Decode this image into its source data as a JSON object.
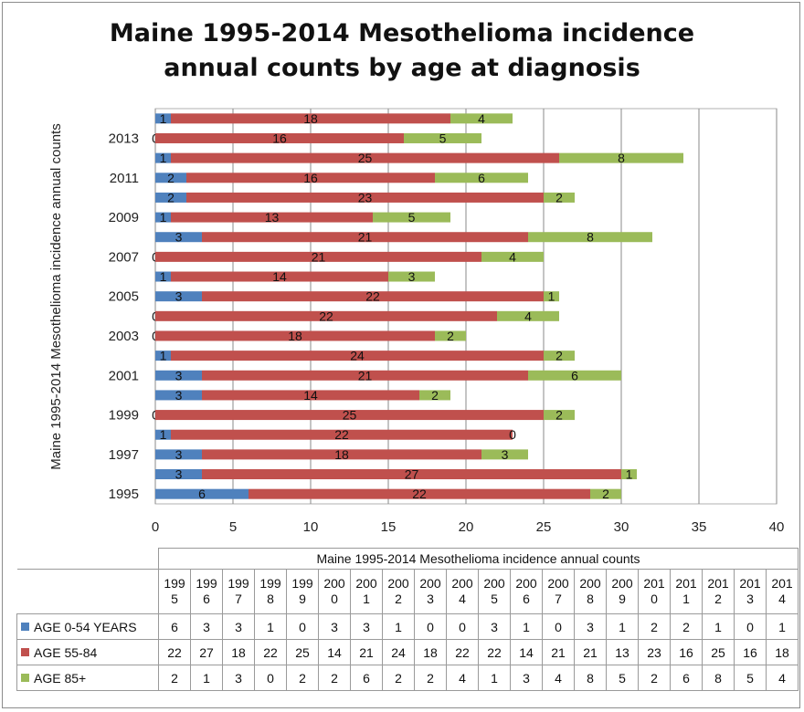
{
  "chart_data": {
    "type": "bar",
    "orientation": "horizontal",
    "stacked": true,
    "title_lines": [
      "Maine  1995-2014 Mesothelioma incidence",
      "annual counts by age at diagnosis"
    ],
    "ylabel": "Maine  1995-2014 Mesothelioma incidence annual counts",
    "xlabel": "",
    "xlim": [
      0,
      40
    ],
    "x_ticks": [
      "0",
      "5",
      "10",
      "15",
      "20",
      "25",
      "30",
      "35",
      "40"
    ],
    "y_tick_labels": [
      "1995",
      "1997",
      "1999",
      "2001",
      "2003",
      "2005",
      "2007",
      "2009",
      "2011",
      "2013"
    ],
    "grid": "vertical gridlines",
    "categories": [
      "1995",
      "1996",
      "1997",
      "1998",
      "1999",
      "2000",
      "2001",
      "2002",
      "2003",
      "2004",
      "2005",
      "2006",
      "2007",
      "2008",
      "2009",
      "2010",
      "2011",
      "2012",
      "2013",
      "2014"
    ],
    "series": [
      {
        "name": "AGE 0-54 YEARS",
        "color": "#4f81bd",
        "values": [
          6,
          3,
          3,
          1,
          0,
          3,
          3,
          1,
          0,
          0,
          3,
          1,
          0,
          3,
          1,
          2,
          2,
          1,
          0,
          1
        ]
      },
      {
        "name": "AGE 55-84",
        "color": "#c0504d",
        "values": [
          22,
          27,
          18,
          22,
          25,
          14,
          21,
          24,
          18,
          22,
          22,
          14,
          21,
          21,
          13,
          23,
          16,
          25,
          16,
          18
        ]
      },
      {
        "name": "AGE 85+",
        "color": "#9bbb59",
        "values": [
          2,
          1,
          3,
          0,
          2,
          2,
          6,
          2,
          2,
          4,
          1,
          3,
          4,
          8,
          5,
          2,
          6,
          8,
          5,
          4
        ]
      }
    ]
  },
  "table": {
    "title": "Maine  1995-2014 Mesothelioma incidence annual counts",
    "years_wrapped": [
      [
        "199",
        "5"
      ],
      [
        "199",
        "6"
      ],
      [
        "199",
        "7"
      ],
      [
        "199",
        "8"
      ],
      [
        "199",
        "9"
      ],
      [
        "200",
        "0"
      ],
      [
        "200",
        "1"
      ],
      [
        "200",
        "2"
      ],
      [
        "200",
        "3"
      ],
      [
        "200",
        "4"
      ],
      [
        "200",
        "5"
      ],
      [
        "200",
        "6"
      ],
      [
        "200",
        "7"
      ],
      [
        "200",
        "8"
      ],
      [
        "200",
        "9"
      ],
      [
        "201",
        "0"
      ],
      [
        "201",
        "1"
      ],
      [
        "201",
        "2"
      ],
      [
        "201",
        "3"
      ],
      [
        "201",
        "4"
      ]
    ]
  }
}
